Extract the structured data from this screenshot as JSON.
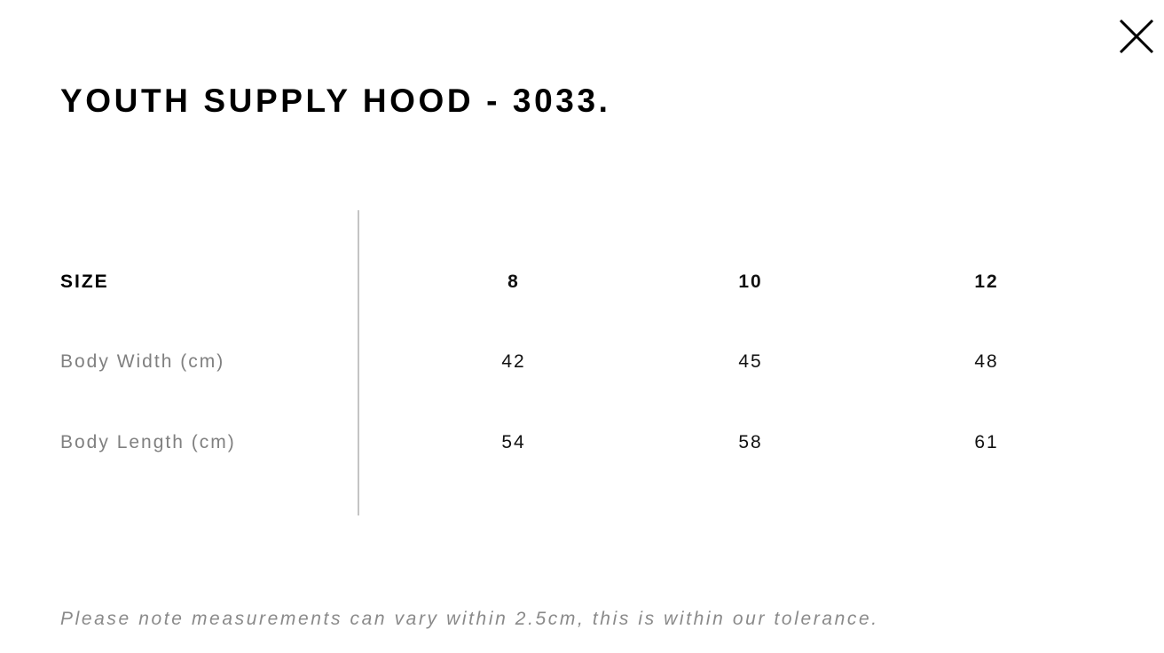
{
  "modal": {
    "title": "YOUTH SUPPLY HOOD - 3033.",
    "close_icon": "close-x-icon"
  },
  "table": {
    "header_label": "SIZE",
    "sizes": [
      "8",
      "10",
      "12"
    ],
    "rows": [
      {
        "label": "Body Width (cm)",
        "values": [
          "42",
          "45",
          "48"
        ]
      },
      {
        "label": "Body Length (cm)",
        "values": [
          "54",
          "58",
          "61"
        ]
      }
    ]
  },
  "note": "Please note measurements can vary within 2.5cm, this is within our tolerance."
}
